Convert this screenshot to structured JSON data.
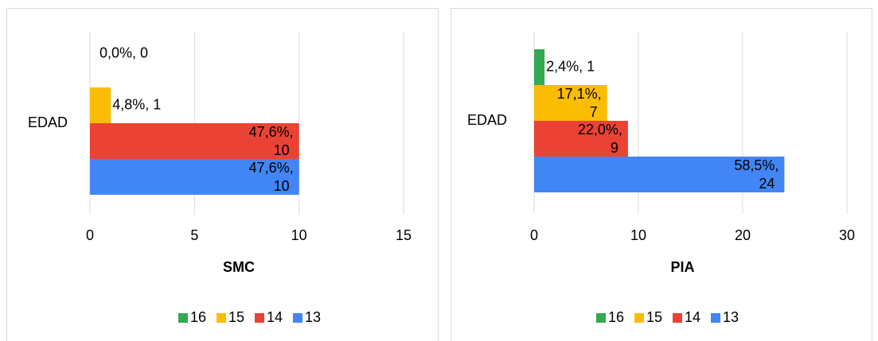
{
  "chart_data": [
    {
      "type": "bar",
      "orientation": "horizontal",
      "categories": [
        "EDAD"
      ],
      "x_label": "SMC",
      "series": [
        {
          "name": "16",
          "color": "#34a853",
          "values": [
            0
          ],
          "value_labels": [
            "0,0%, 0"
          ]
        },
        {
          "name": "15",
          "color": "#fbbc04",
          "values": [
            1
          ],
          "value_labels": [
            "4,8%, 1"
          ]
        },
        {
          "name": "14",
          "color": "#ea4335",
          "values": [
            10
          ],
          "value_labels": [
            "47,6%, 10"
          ]
        },
        {
          "name": "13",
          "color": "#4285f4",
          "values": [
            10
          ],
          "value_labels": [
            "47,6%, 10"
          ]
        }
      ],
      "xlim": [
        0,
        15
      ],
      "xticks": [
        0,
        5,
        10,
        15
      ],
      "grid": true,
      "legend": "bottom"
    },
    {
      "type": "bar",
      "orientation": "horizontal",
      "categories": [
        "EDAD"
      ],
      "x_label": "PIA",
      "series": [
        {
          "name": "16",
          "color": "#34a853",
          "values": [
            1
          ],
          "value_labels": [
            "2,4%, 1"
          ]
        },
        {
          "name": "15",
          "color": "#fbbc04",
          "values": [
            7
          ],
          "value_labels": [
            "17,1%, 7"
          ]
        },
        {
          "name": "14",
          "color": "#ea4335",
          "values": [
            9
          ],
          "value_labels": [
            "22,0%, 9"
          ]
        },
        {
          "name": "13",
          "color": "#4285f4",
          "values": [
            24
          ],
          "value_labels": [
            "58,5%, 24"
          ]
        }
      ],
      "xlim": [
        0,
        30
      ],
      "xticks": [
        0,
        10,
        20,
        30
      ],
      "grid": true,
      "legend": "bottom"
    }
  ]
}
